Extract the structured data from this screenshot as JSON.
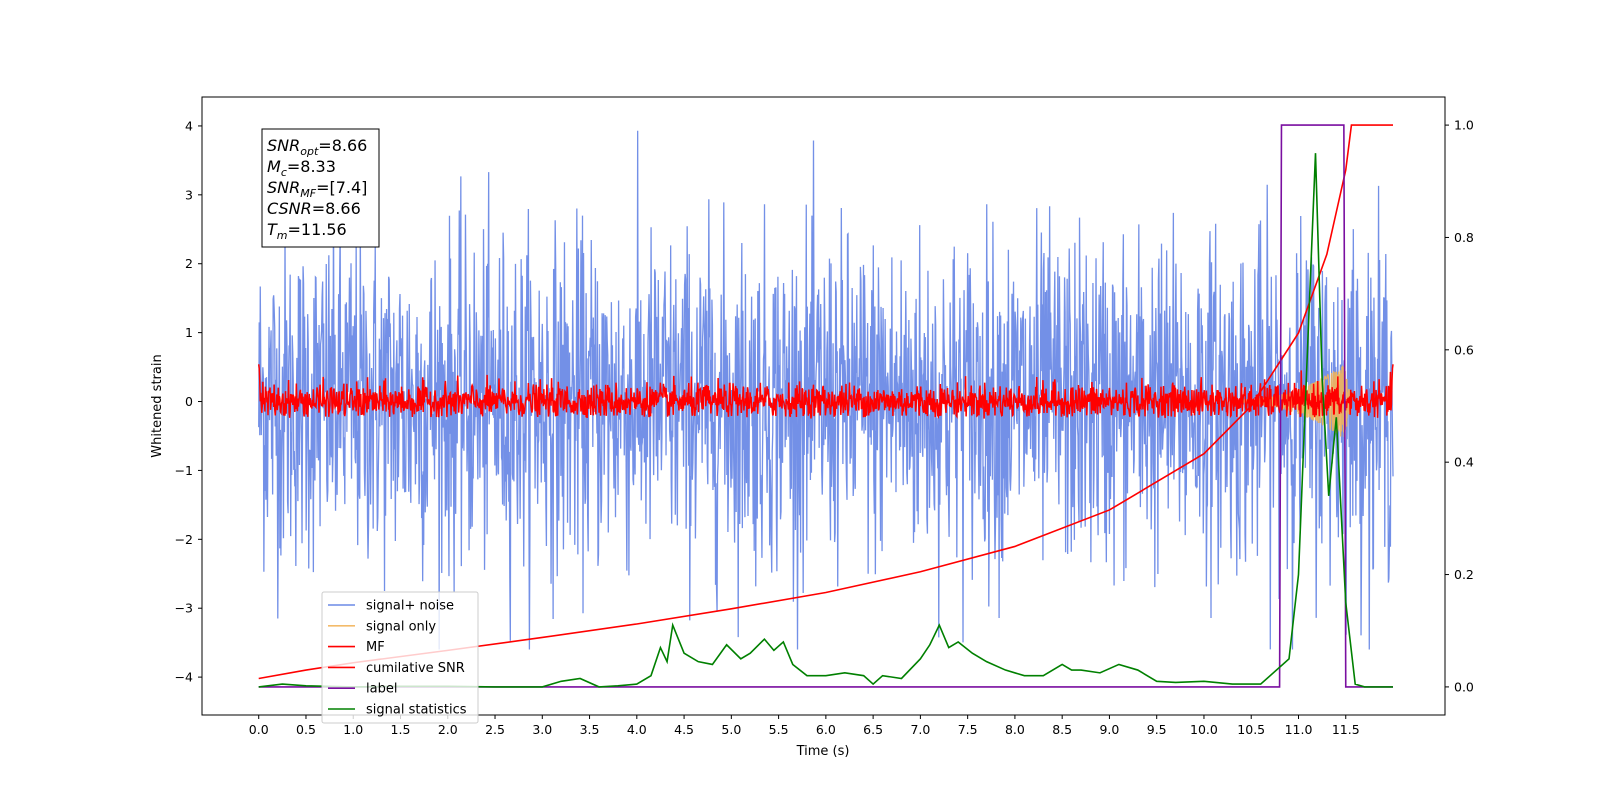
{
  "chart_data": {
    "type": "line",
    "xlabel": "Time (s)",
    "ylabel": "Whitened strain",
    "xlim": [
      -0.6,
      12.55
    ],
    "ylim": [
      -4.55,
      4.42
    ],
    "y2lim": [
      -0.05,
      1.05
    ],
    "x_ticks": [
      0.0,
      0.5,
      1.0,
      1.5,
      2.0,
      2.5,
      3.0,
      3.5,
      4.0,
      4.5,
      5.0,
      5.5,
      6.0,
      6.5,
      7.0,
      7.5,
      8.0,
      8.5,
      9.0,
      9.5,
      10.0,
      10.5,
      11.0,
      11.5
    ],
    "x_tick_labels": [
      "0.0",
      "0.5",
      "1.0",
      "1.5",
      "2.0",
      "2.5",
      "3.0",
      "3.5",
      "4.0",
      "4.5",
      "5.0",
      "5.5",
      "6.0",
      "6.5",
      "7.0",
      "7.5",
      "8.0",
      "8.5",
      "9.0",
      "9.5",
      "10.0",
      "10.5",
      "11.0",
      "11.5"
    ],
    "y_ticks": [
      -4,
      -3,
      -2,
      -1,
      0,
      1,
      2,
      3,
      4
    ],
    "y_tick_labels": [
      "−4",
      "−3",
      "−2",
      "−1",
      "0",
      "1",
      "2",
      "3",
      "4"
    ],
    "y2_ticks": [
      0.0,
      0.2,
      0.4,
      0.6,
      0.8,
      1.0
    ],
    "y2_tick_labels": [
      "0.0",
      "0.2",
      "0.4",
      "0.6",
      "0.8",
      "1.0"
    ],
    "legend_position": "lower-left",
    "grid": false,
    "series": [
      {
        "name": "signal+ noise",
        "color": "#6b8ae6",
        "axis": "left",
        "style": "noise",
        "x_range": [
          0.0,
          12.0
        ],
        "amplitude": 1.2
      },
      {
        "name": "signal only",
        "color": "#f2b45a",
        "axis": "left",
        "style": "chirp",
        "x_range": [
          10.3,
          11.56
        ],
        "peak_amplitude": 0.6
      },
      {
        "name": "MF",
        "color": "#ff0000",
        "axis": "left",
        "style": "noise",
        "x_range": [
          0.0,
          12.0
        ],
        "amplitude": 0.13
      },
      {
        "name": "cumilative SNR",
        "color": "#ff0000",
        "axis": "right",
        "x": [
          0.0,
          0.5,
          1.0,
          2.0,
          3.0,
          4.0,
          5.0,
          6.0,
          7.0,
          8.0,
          9.0,
          10.0,
          10.5,
          11.0,
          11.3,
          11.5,
          11.56,
          12.0
        ],
        "y": [
          0.015,
          0.03,
          0.043,
          0.065,
          0.088,
          0.112,
          0.139,
          0.168,
          0.205,
          0.25,
          0.315,
          0.415,
          0.5,
          0.63,
          0.77,
          0.92,
          1.0,
          1.0
        ]
      },
      {
        "name": "label",
        "color": "#7a0fa0",
        "axis": "right",
        "x": [
          0.0,
          10.8,
          10.82,
          11.48,
          11.5,
          12.0
        ],
        "y": [
          0.0,
          0.0,
          1.0,
          1.0,
          0.0,
          0.0
        ]
      },
      {
        "name": "signal statistics",
        "color": "#008000",
        "axis": "right",
        "x": [
          0.0,
          0.25,
          0.5,
          1.0,
          1.5,
          2.0,
          2.5,
          3.0,
          3.2,
          3.4,
          3.6,
          3.8,
          4.0,
          4.15,
          4.25,
          4.32,
          4.38,
          4.5,
          4.65,
          4.8,
          4.95,
          5.1,
          5.2,
          5.35,
          5.45,
          5.55,
          5.65,
          5.8,
          6.0,
          6.2,
          6.4,
          6.5,
          6.6,
          6.8,
          7.0,
          7.1,
          7.2,
          7.3,
          7.4,
          7.55,
          7.7,
          7.9,
          8.1,
          8.3,
          8.5,
          8.6,
          8.7,
          8.9,
          9.1,
          9.3,
          9.5,
          9.7,
          10.0,
          10.3,
          10.6,
          10.9,
          11.0,
          11.1,
          11.18,
          11.25,
          11.32,
          11.4,
          11.5,
          11.6,
          11.7,
          12.0
        ],
        "y": [
          0.0,
          0.005,
          0.002,
          0.0,
          0.001,
          0.001,
          0.0,
          0.0,
          0.01,
          0.015,
          0.0,
          0.002,
          0.005,
          0.02,
          0.07,
          0.045,
          0.11,
          0.06,
          0.045,
          0.04,
          0.075,
          0.05,
          0.06,
          0.085,
          0.065,
          0.08,
          0.04,
          0.02,
          0.02,
          0.025,
          0.02,
          0.005,
          0.02,
          0.015,
          0.05,
          0.075,
          0.11,
          0.07,
          0.08,
          0.06,
          0.045,
          0.03,
          0.02,
          0.02,
          0.04,
          0.03,
          0.03,
          0.025,
          0.04,
          0.03,
          0.01,
          0.008,
          0.01,
          0.005,
          0.005,
          0.05,
          0.2,
          0.62,
          0.95,
          0.55,
          0.34,
          0.48,
          0.15,
          0.005,
          0.0,
          0.0
        ]
      }
    ],
    "annotation_lines": [
      {
        "base": "SNR",
        "sub": "opt",
        "value": "=8.66"
      },
      {
        "base": "M",
        "sub": "c",
        "value": "=8.33"
      },
      {
        "base": "SNR",
        "sub": "MF",
        "value": "=[7.4]"
      },
      {
        "base": "CSNR",
        "sub": "",
        "value": "=8.66"
      },
      {
        "base": "T",
        "sub": "m",
        "value": "=11.56"
      }
    ]
  }
}
